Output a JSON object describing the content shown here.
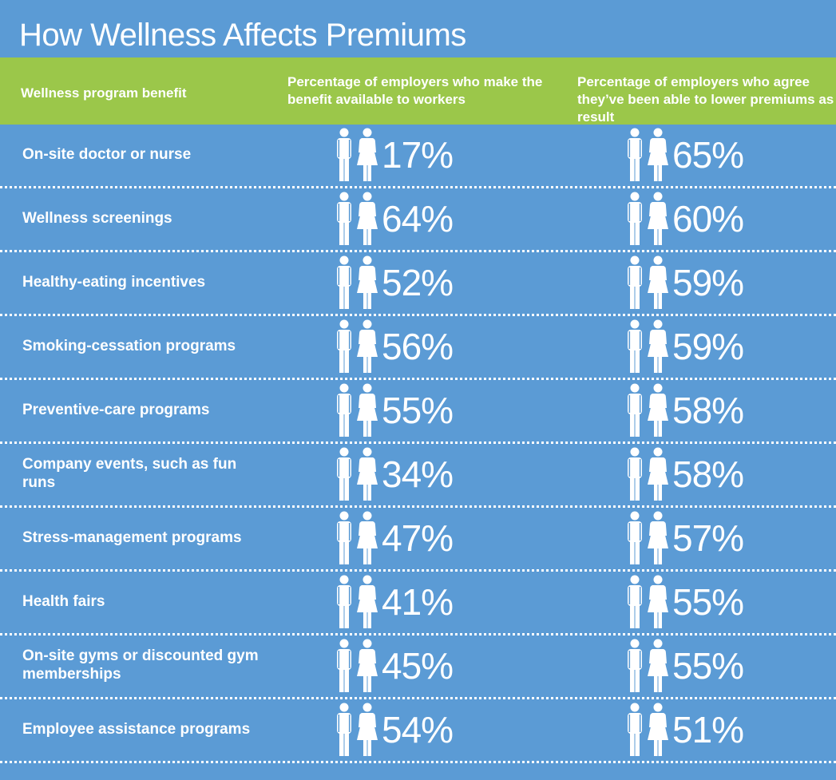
{
  "title": "How Wellness Affects Premiums",
  "header": {
    "col1": "Wellness program benefit",
    "col2": "Percentage of employers who make the benefit available to workers",
    "col3": "Percentage of employers who agree they’ve been able to lower premiums as a result"
  },
  "chart_data": {
    "type": "table",
    "title": "How Wellness Affects Premiums",
    "columns": [
      "Wellness program benefit",
      "Percentage of employers who make the benefit available to workers",
      "Percentage of employers who agree they’ve been able to lower premiums as a result"
    ],
    "rows": [
      {
        "benefit": "On-site doctor or nurse",
        "available": "17%",
        "lowered": "65%"
      },
      {
        "benefit": "Wellness screenings",
        "available": "64%",
        "lowered": "60%"
      },
      {
        "benefit": "Healthy-eating incentives",
        "available": "52%",
        "lowered": "59%"
      },
      {
        "benefit": "Smoking-cessation programs",
        "available": "56%",
        "lowered": "59%"
      },
      {
        "benefit": "Preventive-care programs",
        "available": "55%",
        "lowered": "58%"
      },
      {
        "benefit": "Company events, such as fun runs",
        "available": "34%",
        "lowered": "58%"
      },
      {
        "benefit": "Stress-management programs",
        "available": "47%",
        "lowered": "57%"
      },
      {
        "benefit": "Health fairs",
        "available": "41%",
        "lowered": "55%"
      },
      {
        "benefit": "On-site gyms or discounted gym memberships",
        "available": "45%",
        "lowered": "55%"
      },
      {
        "benefit": "Employee assistance programs",
        "available": "54%",
        "lowered": "51%"
      }
    ]
  },
  "colors": {
    "background": "#5b9bd5",
    "header": "#9bc74a",
    "text": "#ffffff"
  },
  "icon": "man-woman-icon"
}
